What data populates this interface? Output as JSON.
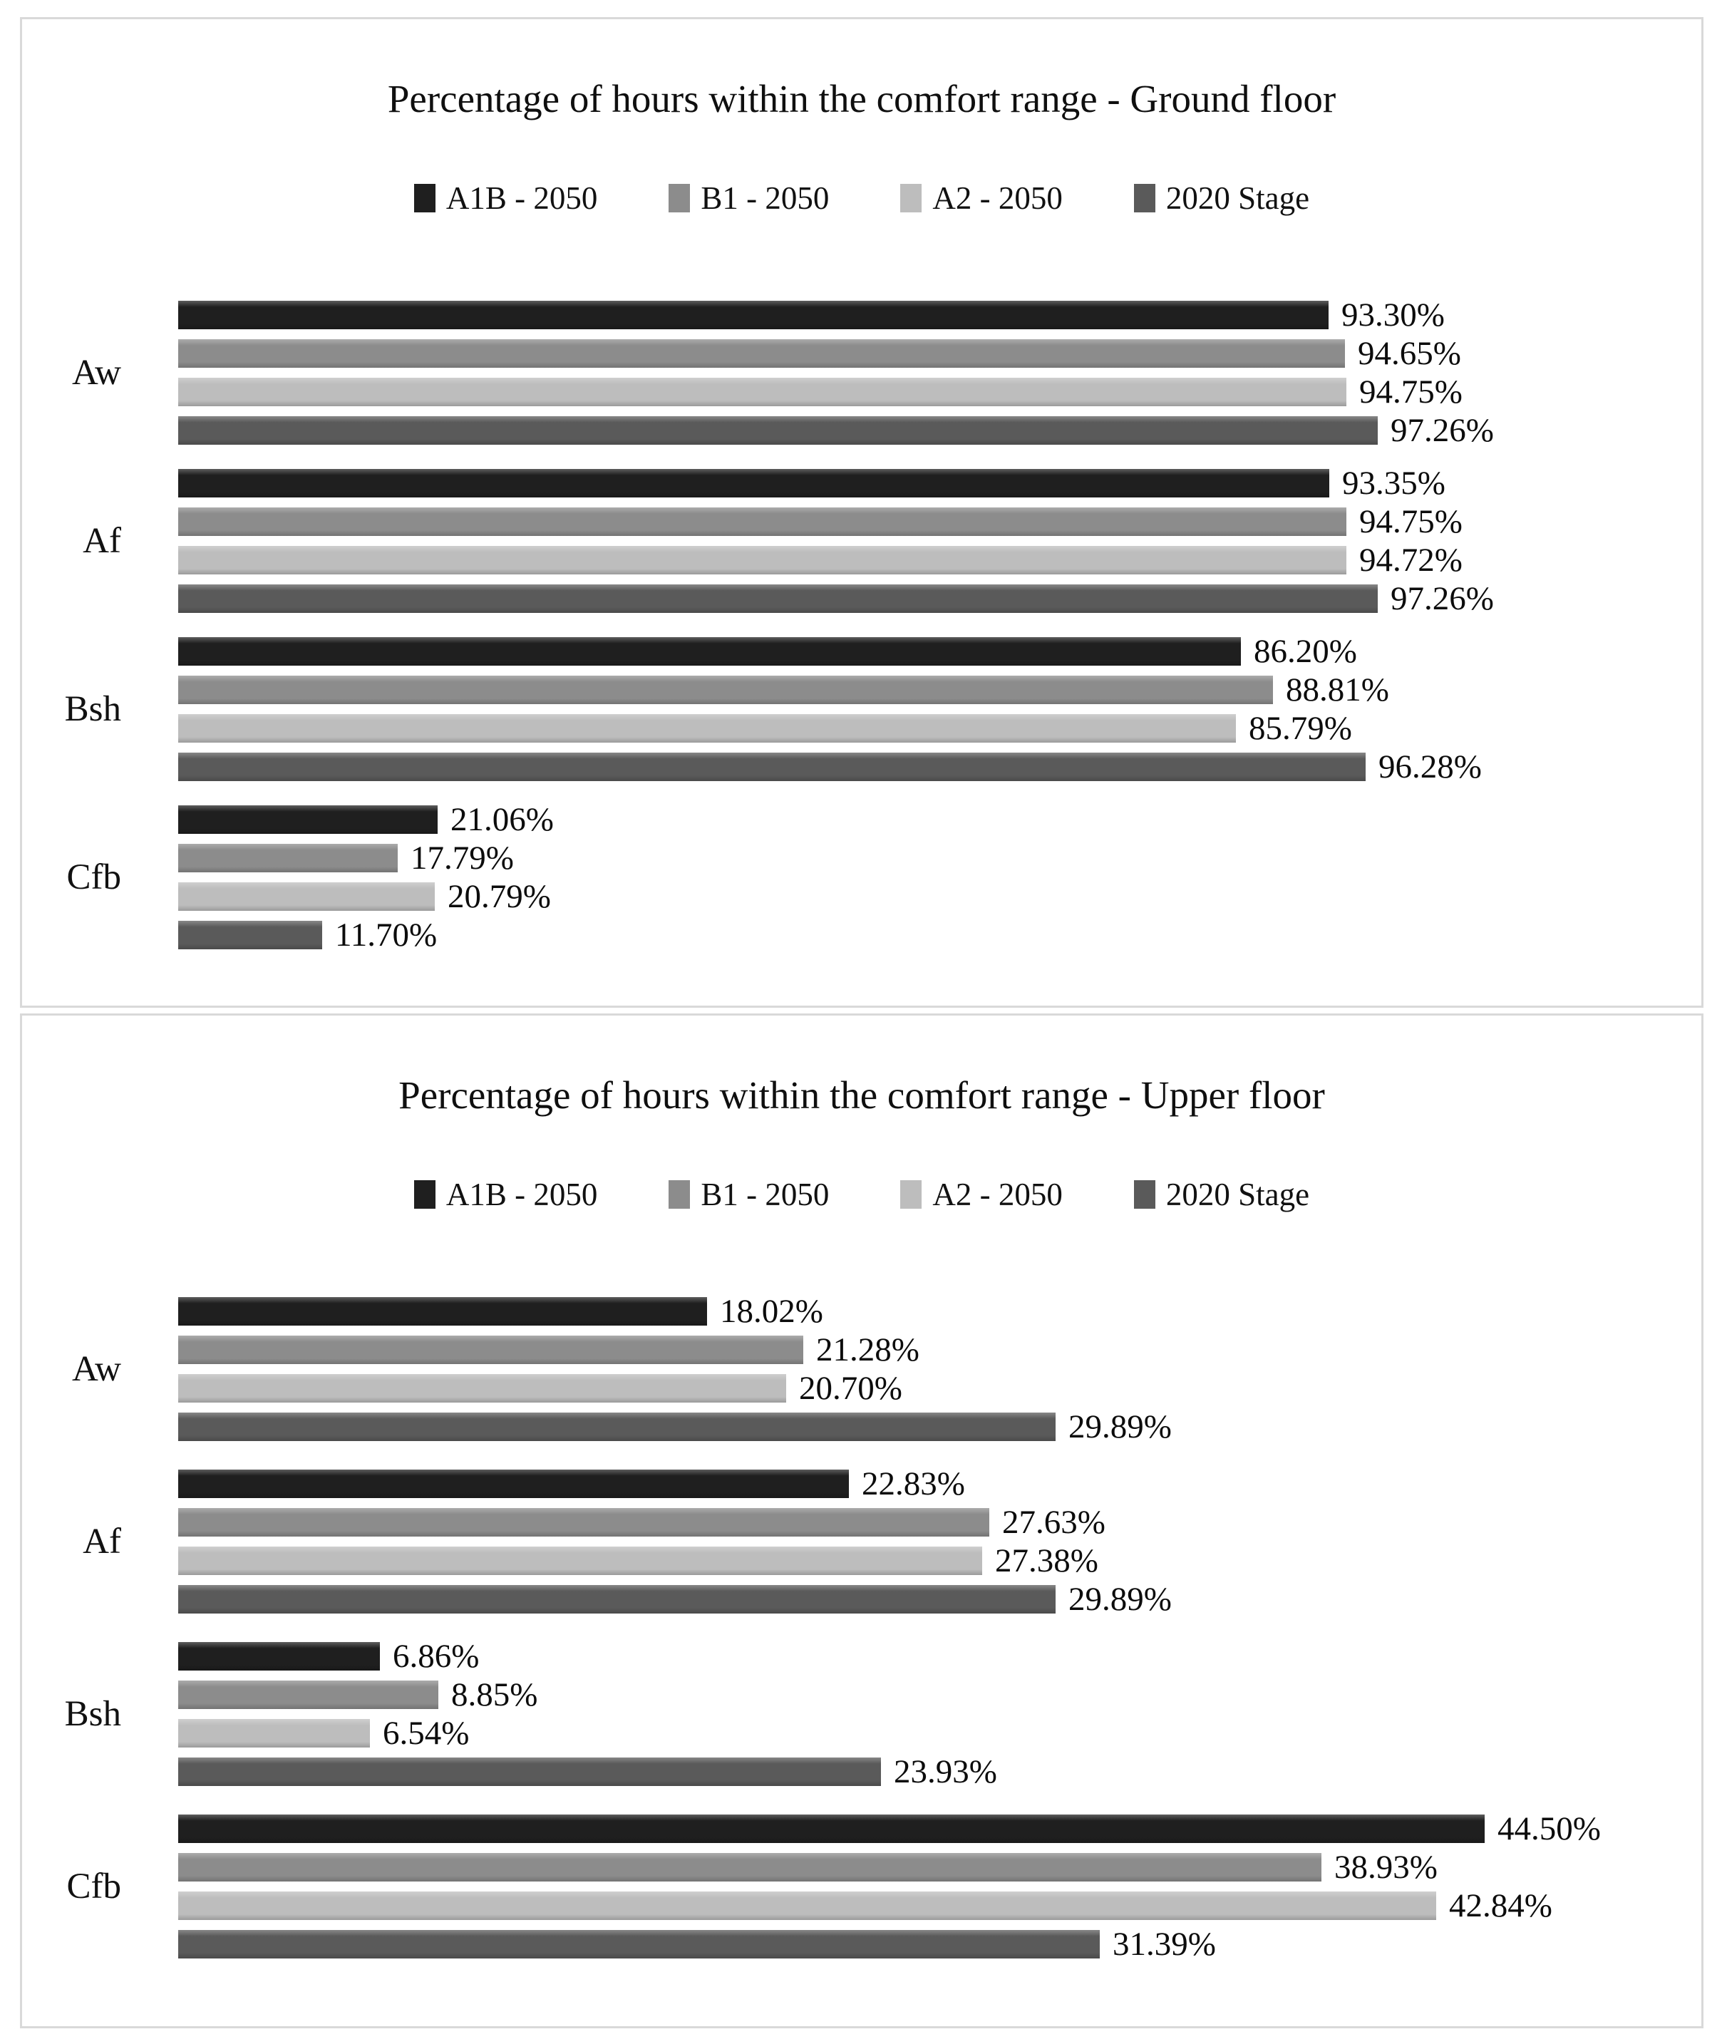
{
  "colors": {
    "a1b_2050": "#1f1f1f",
    "b1_2050": "#8c8c8c",
    "a2_2050": "#bdbdbd",
    "stage_2020": "#5a5a5a",
    "panel_border": "#d9d9d9",
    "background": "#ffffff"
  },
  "chart_data": [
    {
      "type": "bar",
      "orientation": "horizontal",
      "title": "Percentage of hours within the comfort range - Ground floor",
      "categories": [
        "Aw",
        "Af",
        "Bsh",
        "Cfb"
      ],
      "series": [
        {
          "name": "A1B - 2050",
          "color": "#1f1f1f",
          "values": [
            93.3,
            93.35,
            86.2,
            21.06
          ]
        },
        {
          "name": "B1 - 2050",
          "color": "#8c8c8c",
          "values": [
            94.65,
            94.75,
            88.81,
            17.79
          ]
        },
        {
          "name": "A2 - 2050",
          "color": "#bdbdbd",
          "values": [
            94.75,
            94.72,
            85.79,
            20.79
          ]
        },
        {
          "name": "2020 Stage",
          "color": "#5a5a5a",
          "values": [
            97.26,
            97.26,
            96.28,
            11.7
          ]
        }
      ],
      "value_suffix": "%",
      "decimals": 2,
      "axis_max": 100,
      "grid": false,
      "legend_position": "top",
      "data_labels": "outside-end"
    },
    {
      "type": "bar",
      "orientation": "horizontal",
      "title": "Percentage of hours within the comfort range - Upper floor",
      "categories": [
        "Aw",
        "Af",
        "Bsh",
        "Cfb"
      ],
      "series": [
        {
          "name": "A1B - 2050",
          "color": "#1f1f1f",
          "values": [
            18.02,
            22.83,
            6.86,
            44.5
          ]
        },
        {
          "name": "B1 - 2050",
          "color": "#8c8c8c",
          "values": [
            21.28,
            27.63,
            8.85,
            38.93
          ]
        },
        {
          "name": "A2 - 2050",
          "color": "#bdbdbd",
          "values": [
            20.7,
            27.38,
            6.54,
            42.84
          ]
        },
        {
          "name": "2020 Stage",
          "color": "#5a5a5a",
          "values": [
            29.89,
            29.89,
            23.93,
            31.39
          ]
        }
      ],
      "value_suffix": "%",
      "decimals": 2,
      "axis_max": 50,
      "grid": false,
      "legend_position": "top",
      "data_labels": "outside-end"
    }
  ]
}
